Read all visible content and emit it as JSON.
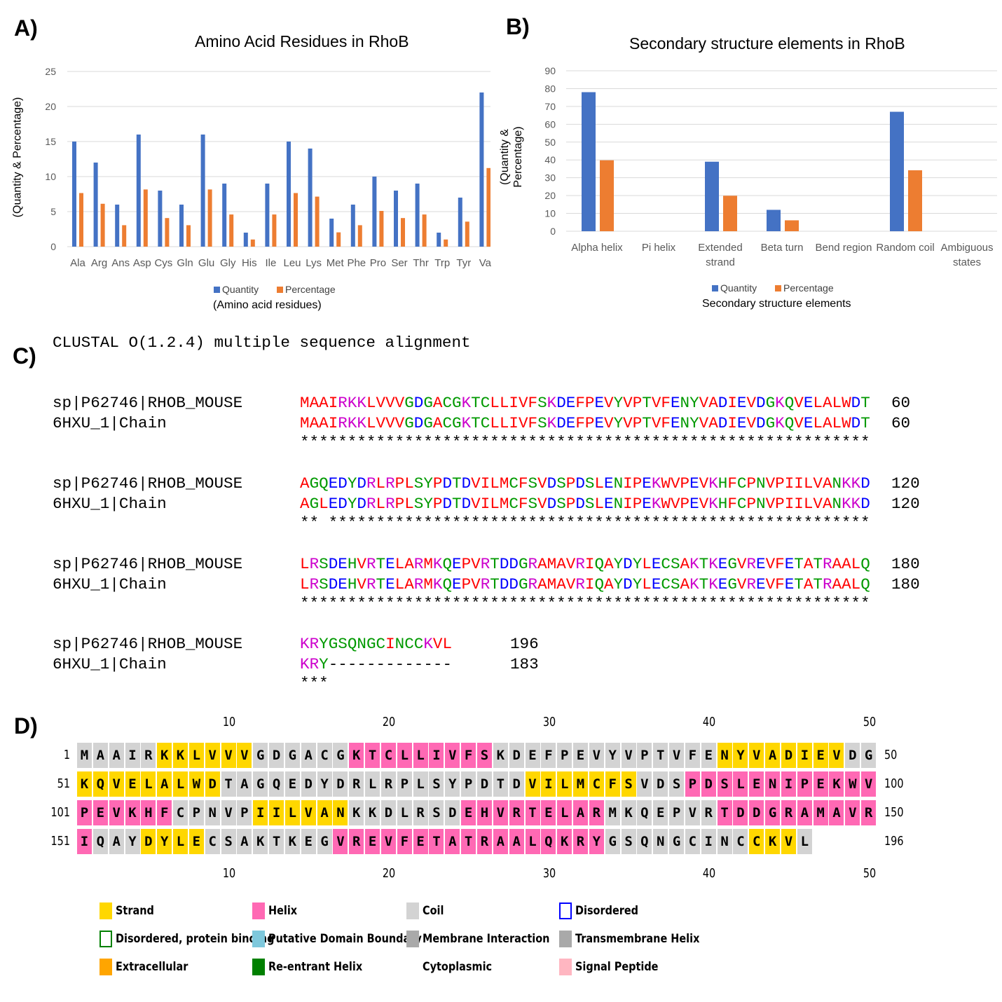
{
  "panel_labels": {
    "a": "A)",
    "b": "B)",
    "c": "C)",
    "d": "D)"
  },
  "chart_data": [
    {
      "type": "bar",
      "title": "Amino Acid Residues in RhoB",
      "xlabel": "(Amino acid residues)",
      "ylabel": "(Quantity & Percentage)",
      "ylim": [
        0,
        25
      ],
      "yticks": [
        0,
        5,
        10,
        15,
        20,
        25
      ],
      "grid": true,
      "legend": "bottom",
      "categories": [
        "Ala",
        "Arg",
        "Ans",
        "Asp",
        "Cys",
        "Gln",
        "Glu",
        "Gly",
        "His",
        "Ile",
        "Leu",
        "Lys",
        "Met",
        "Phe",
        "Pro",
        "Ser",
        "Thr",
        "Trp",
        "Tyr",
        "Va"
      ],
      "series": [
        {
          "name": "Quantity",
          "color": "#4472C4",
          "values": [
            15,
            12,
            6,
            16,
            8,
            6,
            16,
            9,
            2,
            9,
            15,
            14,
            4,
            6,
            10,
            8,
            9,
            2,
            7,
            22
          ]
        },
        {
          "name": "Percentage",
          "color": "#ED7D31",
          "values": [
            7.65,
            6.12,
            3.06,
            8.16,
            4.08,
            3.06,
            8.16,
            4.59,
            1.02,
            4.59,
            7.65,
            7.14,
            2.04,
            3.06,
            5.1,
            4.08,
            4.59,
            1.02,
            3.57,
            11.22
          ]
        }
      ]
    },
    {
      "type": "bar",
      "title": "Secondary structure elements in RhoB",
      "xlabel": "Secondary structure elements",
      "ylabel": "(Quantity & Percentage)",
      "ylim": [
        0,
        90
      ],
      "yticks": [
        0,
        10,
        20,
        30,
        40,
        50,
        60,
        70,
        80,
        90
      ],
      "grid": true,
      "legend": "bottom",
      "categories": [
        [
          "Alpha helix"
        ],
        [
          "Pi helix"
        ],
        [
          "Extended",
          "strand"
        ],
        [
          "Beta turn"
        ],
        [
          "Bend region"
        ],
        [
          "Random coil"
        ],
        [
          "Ambiguous",
          "states"
        ]
      ],
      "series": [
        {
          "name": "Quantity",
          "color": "#4472C4",
          "values": [
            78,
            0,
            39,
            12,
            0,
            67,
            0
          ]
        },
        {
          "name": "Percentage",
          "color": "#ED7D31",
          "values": [
            39.8,
            0,
            19.9,
            6.12,
            0,
            34.18,
            0
          ]
        }
      ]
    }
  ],
  "alignment": {
    "header": "CLUSTAL O(1.2.4) multiple sequence alignment",
    "blocks": [
      {
        "rows": [
          {
            "name": "sp|P62746|RHOB_MOUSE",
            "seq": "MAAIRKKLVVVGDGACGKTCLLIVFSKDEFPEVYVPTVFENYVADIEVDGKQVELALWDT",
            "num": "60"
          },
          {
            "name": "6HXU_1|Chain",
            "seq": "MAAIRKKLVVVGDGACGKTCLLIVFSKDEFPEVYVPTVFENYVADIEVDGKQVELALWDT",
            "num": "60"
          }
        ],
        "cons": "************************************************************"
      },
      {
        "rows": [
          {
            "name": "sp|P62746|RHOB_MOUSE",
            "seq": "AGQEDYDRLRPLSYPDTDVILMCFSVDSPDSLENIPEKWVPEVKHFCPNVPIILVANKKD",
            "num": "120"
          },
          {
            "name": "6HXU_1|Chain",
            "seq": "AGLEDYDRLRPLSYPDTDVILMCFSVDSPDSLENIPEKWVPEVKHFCPNVPIILVANKKD",
            "num": "120"
          }
        ],
        "cons": "** *********************************************************"
      },
      {
        "rows": [
          {
            "name": "sp|P62746|RHOB_MOUSE",
            "seq": "LRSDEHVRTELARMKQEPVRTDDGRAMAVRIQAYDYLECSAKTKEGVREVFETATRAALQ",
            "num": "180"
          },
          {
            "name": "6HXU_1|Chain",
            "seq": "LRSDEHVRTELARMKQEPVRTDDGRAMAVRIQAYDYLECSAKTKEGVREVFETATRAALQ",
            "num": "180"
          }
        ],
        "cons": "************************************************************"
      },
      {
        "rows": [
          {
            "name": "sp|P62746|RHOB_MOUSE",
            "seq": "KRYGSQNGCINCCKVL",
            "num": "196"
          },
          {
            "name": "6HXU_1|Chain",
            "seq": "KRY-------------",
            "num": "183"
          }
        ],
        "cons": "***"
      }
    ],
    "residue_colors": {
      "AVFPMILW": "#FF0000",
      "DE": "#0000FF",
      "RK": "#CC00CC",
      "STYHCNGQ": "#009900",
      "-": "#000000"
    }
  },
  "psipred": {
    "sequence": "MAAIRKKLVVVGDGACGKTCLLIVFSKDEFPEVYVPTVFENYVADIEVDGKQVELALWDTAGQEDYDRLRPLSYPDTDVILMCFSVDSPDSLENIPEKWVPEVKHFCPNVPIILVANKKDLRSDEHVRTELARMKQEPVRTDDGRAMAVRIQAYDYLECSAKTKEGVREVFETATRAALQKRYGSQNGCINCCKVL",
    "ss": "CCCCCEEEEEECCCCCCHHHHHHHHHCCCCCCCCCCCCCCEEEEEEEECCEEEEEEEEECCCCCCCCCCCCCCCCCCCEEEEEEECCCHHHHHHHHHHHHHHHHHHCCCCCEEEEEECCCCCCCHHHHHHHHHCCCCCCCHHHHHHHHHHHCCCEEEECCCCCCCCHHHHHHHHHHHHHHHHHCCCCCCCCCEEEC",
    "ruler": [
      "10",
      "20",
      "30",
      "40",
      "50"
    ],
    "row_start": [
      "1",
      "51",
      "101",
      "151"
    ],
    "row_end": [
      "50",
      "100",
      "150",
      "196"
    ],
    "ss_colors": {
      "E": "#FFD700",
      "H": "#FF69B4",
      "C": "#D3D3D3"
    },
    "legend": [
      {
        "label": "Strand",
        "fill": "#FFD700",
        "border": ""
      },
      {
        "label": "Helix",
        "fill": "#FF69B4",
        "border": ""
      },
      {
        "label": "Coil",
        "fill": "#D3D3D3",
        "border": ""
      },
      {
        "label": "Disordered",
        "fill": "#FFFFFF",
        "border": "#0000FF"
      },
      {
        "label": "Disordered, protein binding",
        "fill": "#FFFFFF",
        "border": "#008000"
      },
      {
        "label": "Putative Domain Boundary",
        "fill": "#7EC8DC",
        "border": ""
      },
      {
        "label": "Membrane Interaction",
        "fill": "#A9A9A9",
        "border": ""
      },
      {
        "label": "Transmembrane Helix",
        "fill": "#A9A9A9",
        "border": ""
      },
      {
        "label": "Extracellular",
        "fill": "#FFA500",
        "border": ""
      },
      {
        "label": "Re-entrant Helix",
        "fill": "#008000",
        "border": ""
      },
      {
        "label": "Cytoplasmic",
        "fill": "#FFFFFF",
        "border": ""
      },
      {
        "label": "Signal Peptide",
        "fill": "#FFB6C1",
        "border": ""
      }
    ]
  }
}
